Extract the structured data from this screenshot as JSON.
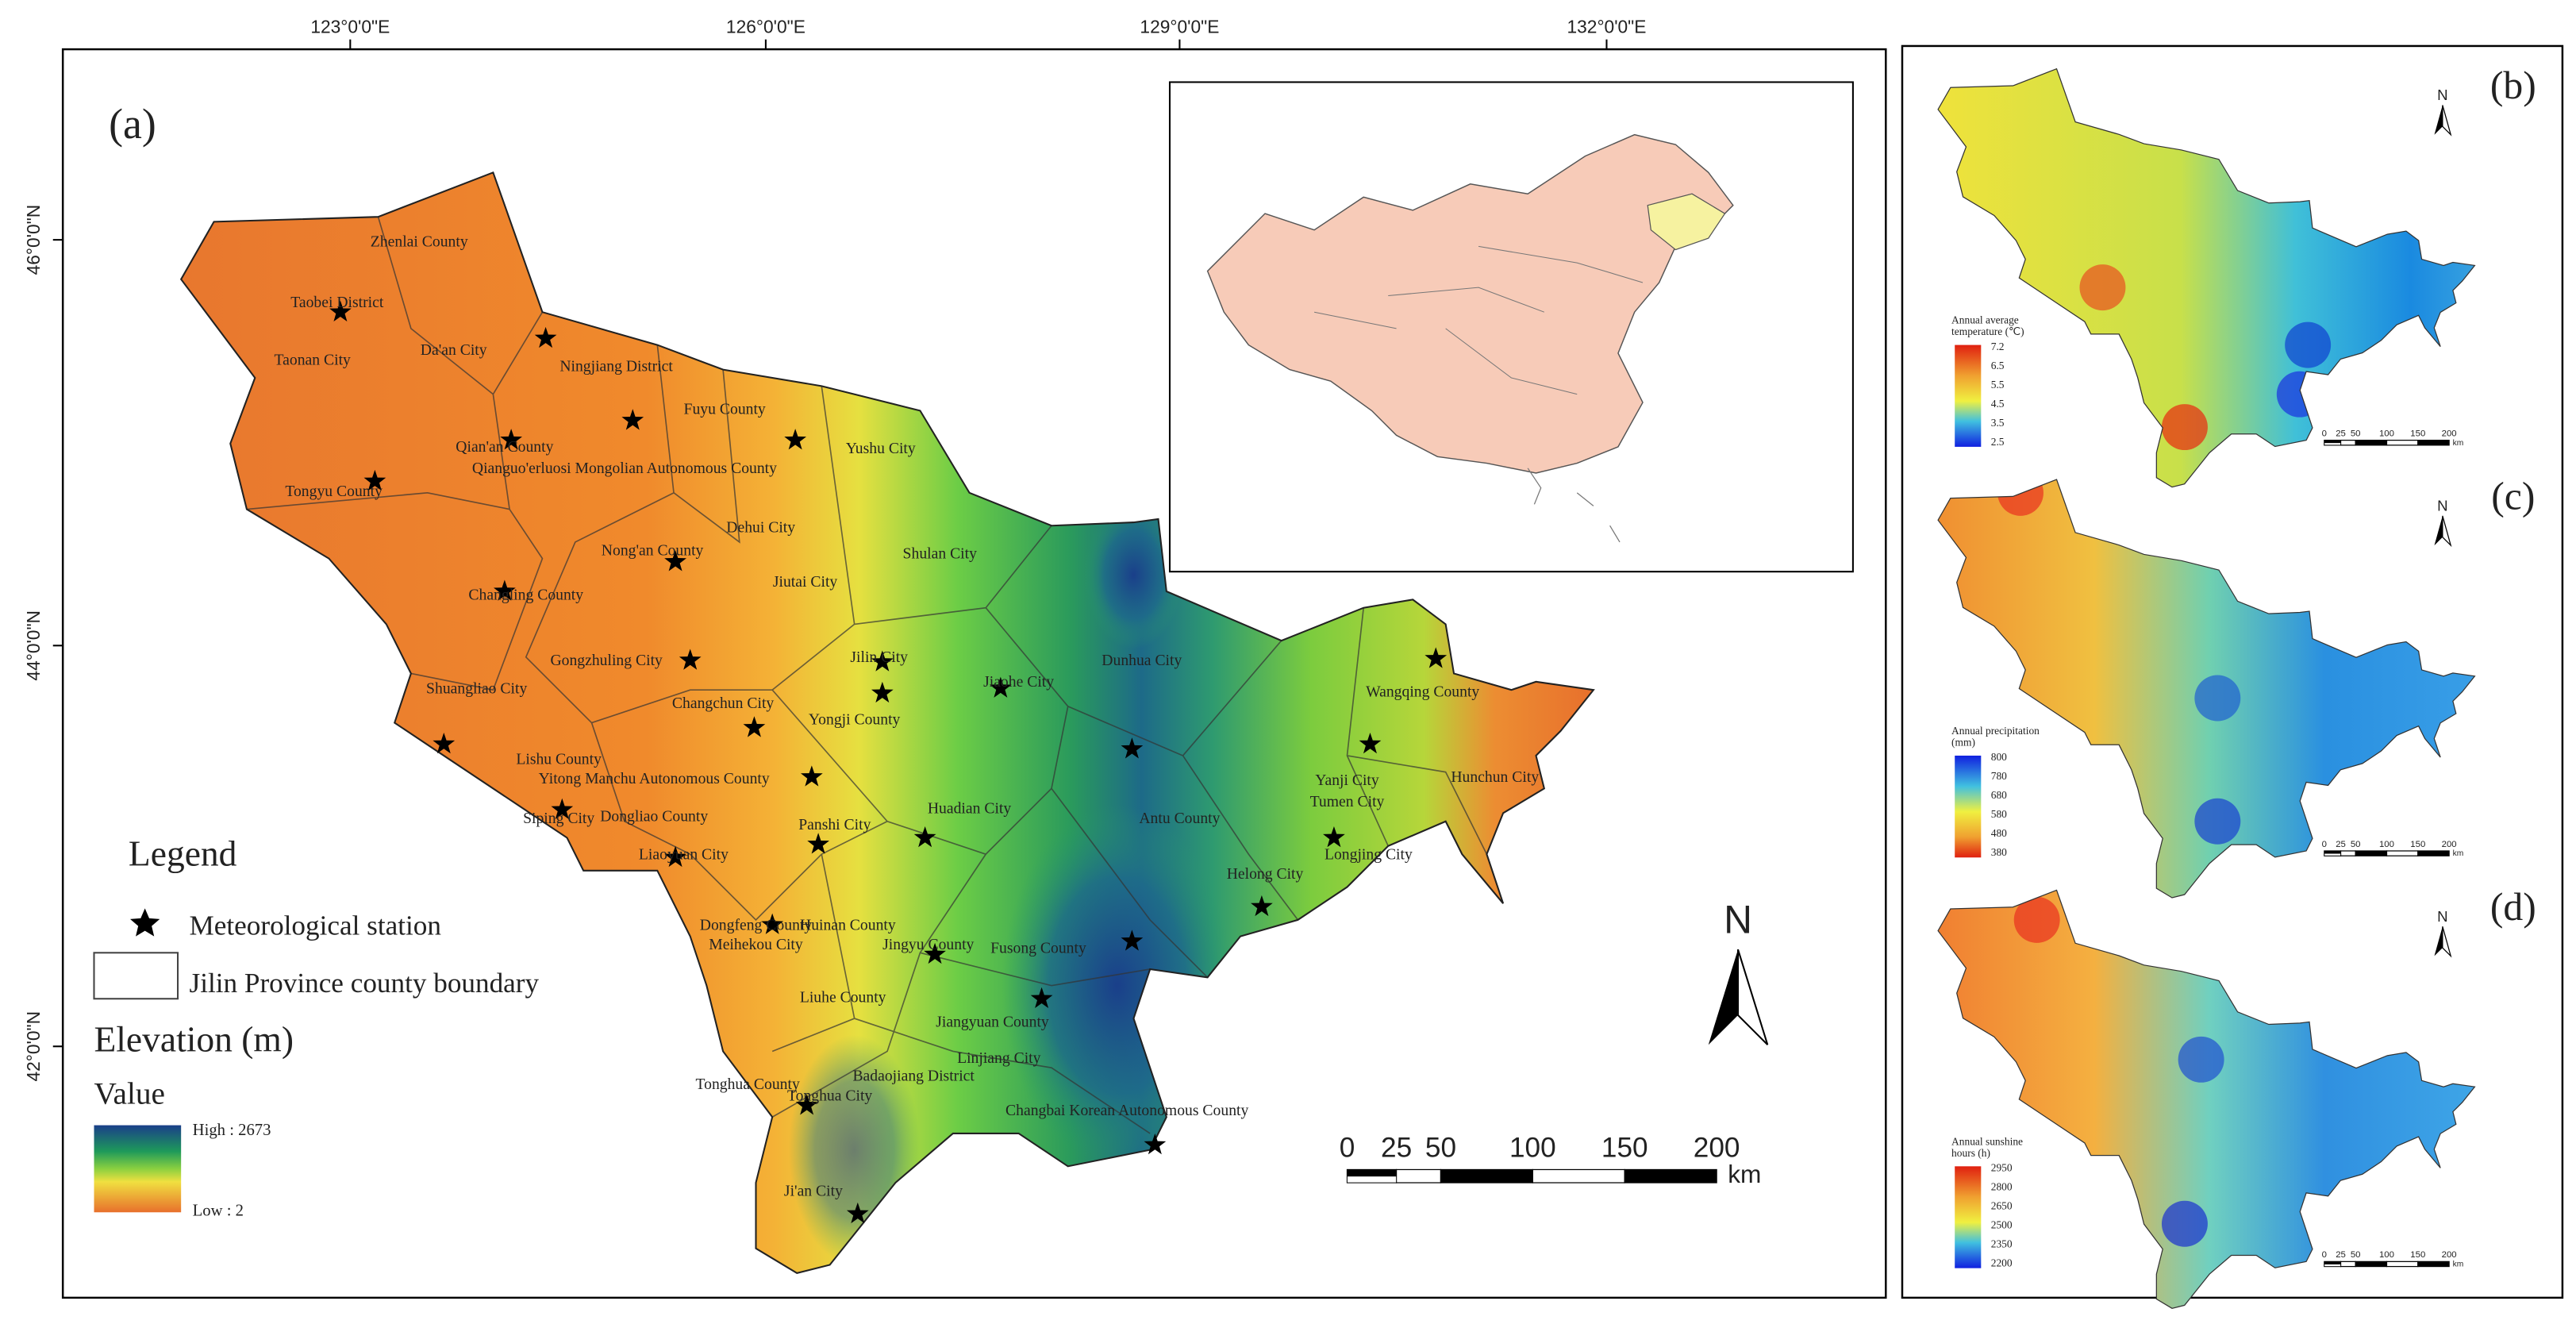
{
  "panel_a": {
    "label": "(a)",
    "lon_labels": [
      "123°0'0\"E",
      "126°0'0\"E",
      "129°0'0\"E",
      "132°0'0\"E"
    ],
    "lat_labels": [
      "46°0'0\"N",
      "44°0'0\"N",
      "42°0'0\"N"
    ],
    "counties": [
      "Zhenlai County",
      "Taobei District",
      "Da'an City",
      "Taonan City",
      "Ningjiang District",
      "Fuyu County",
      "Yushu City",
      "Qian'an County",
      "Qianguo'erluosi Mongolian Autonomous County",
      "Tongyu County",
      "Nong'an County",
      "Dehui City",
      "Shulan City",
      "Jiutai City",
      "Changling County",
      "Gongzhuling City",
      "Jilin City",
      "Jiaohe City",
      "Dunhua City",
      "Shuangliao City",
      "Changchun City",
      "Yongji County",
      "Wangqing County",
      "Lishu County",
      "Yitong Manchu Autonomous County",
      "Hunchun City",
      "Yanji City",
      "Tumen City",
      "Siping City",
      "Dongliao County",
      "Panshi City",
      "Huadian City",
      "Antu County",
      "Liaoyuan City",
      "Longjing City",
      "Helong City",
      "Dongfeng County",
      "Meihekou City",
      "Huinan County",
      "Jingyu County",
      "Fusong County",
      "Liuhe County",
      "Jiangyuan County",
      "Linjiang City",
      "Tonghua County",
      "Badaojiang District",
      "Tonghua City",
      "Changbai Korean Autonomous County",
      "Ji'an City"
    ],
    "legend": {
      "title": "Legend",
      "station": "Meteorological station",
      "boundary": "Jilin Province county boundary",
      "elevation_title": "Elevation (m)",
      "value": "Value",
      "high": "High : 2673",
      "low": "Low : 2"
    },
    "north": "N",
    "scale_labels": [
      "0",
      "25",
      "50",
      "100",
      "150",
      "200"
    ],
    "scale_unit": "km"
  },
  "panel_b": {
    "label": "(b)",
    "legend_title": [
      "Annual average",
      "temperature (℃)"
    ],
    "ticks": [
      "7.2",
      "6.5",
      "5.5",
      "4.5",
      "3.5",
      "2.5"
    ],
    "north": "N",
    "scale_labels": [
      "0",
      "25",
      "50",
      "100",
      "150",
      "200"
    ],
    "scale_unit": "km"
  },
  "panel_c": {
    "label": "(c)",
    "legend_title": [
      "Annual precipitation",
      "(mm)"
    ],
    "ticks": [
      "800",
      "780",
      "680",
      "580",
      "480",
      "380"
    ],
    "north": "N",
    "scale_labels": [
      "0",
      "25",
      "50",
      "100",
      "150",
      "200"
    ],
    "scale_unit": "km"
  },
  "panel_d": {
    "label": "(d)",
    "legend_title": [
      "Annual sunshine",
      "hours (h)"
    ],
    "ticks": [
      "2950",
      "2800",
      "2650",
      "2500",
      "2350",
      "2200"
    ],
    "north": "N",
    "scale_labels": [
      "0",
      "25",
      "50",
      "100",
      "150",
      "200"
    ],
    "scale_unit": "km"
  }
}
